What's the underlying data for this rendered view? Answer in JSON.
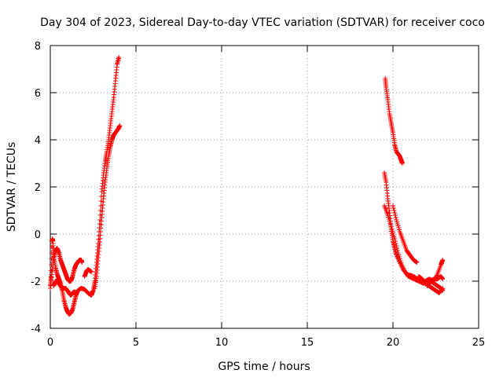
{
  "chart_data": {
    "type": "scatter",
    "title": "Day 304 of 2023, Sidereal Day-to-day VTEC variation (SDTVAR) for receiver coco",
    "xlabel": "GPS time / hours",
    "ylabel": "SDTVAR / TECUs",
    "xlim": [
      0,
      25
    ],
    "ylim": [
      -4,
      8
    ],
    "xticks": [
      0,
      5,
      10,
      15,
      20,
      25
    ],
    "yticks": [
      -4,
      -2,
      0,
      2,
      4,
      6,
      8
    ],
    "xtick_labels": [
      "0",
      "5",
      "10",
      "15",
      "20",
      "25"
    ],
    "ytick_labels": [
      "-4",
      "-2",
      "0",
      "2",
      "4",
      "6",
      "8"
    ],
    "grid": true,
    "marker": "+",
    "series": [
      {
        "name": "SDTVAR",
        "color": "#ff0000",
        "segments": [
          [
            [
              0.0,
              -2.2
            ],
            [
              0.05,
              -1.8
            ],
            [
              0.1,
              -0.3
            ],
            [
              0.12,
              -0.2
            ],
            [
              0.15,
              -0.3
            ],
            [
              0.2,
              -0.9
            ],
            [
              0.3,
              -1.4
            ],
            [
              0.4,
              -1.7
            ],
            [
              0.5,
              -1.9
            ],
            [
              0.6,
              -2.1
            ],
            [
              0.7,
              -2.4
            ],
            [
              0.8,
              -2.8
            ],
            [
              0.9,
              -3.1
            ],
            [
              1.0,
              -3.3
            ],
            [
              1.1,
              -3.4
            ],
            [
              1.2,
              -3.35
            ],
            [
              1.3,
              -3.2
            ],
            [
              1.4,
              -2.9
            ],
            [
              1.5,
              -2.6
            ],
            [
              1.6,
              -2.4
            ],
            [
              1.8,
              -2.3
            ],
            [
              2.0,
              -2.35
            ],
            [
              2.2,
              -2.5
            ],
            [
              2.4,
              -2.6
            ],
            [
              2.5,
              -2.4
            ],
            [
              2.6,
              -2.0
            ],
            [
              2.7,
              -1.2
            ],
            [
              2.8,
              -0.4
            ],
            [
              2.9,
              0.6
            ],
            [
              3.0,
              1.8
            ],
            [
              3.1,
              2.5
            ],
            [
              3.2,
              3.1
            ],
            [
              3.3,
              3.5
            ],
            [
              3.4,
              4.0
            ],
            [
              3.5,
              4.6
            ],
            [
              3.6,
              5.2
            ],
            [
              3.7,
              5.8
            ],
            [
              3.8,
              6.5
            ],
            [
              3.9,
              7.2
            ],
            [
              4.0,
              7.5
            ]
          ],
          [
            [
              0.0,
              -2.3
            ],
            [
              0.1,
              -1.6
            ],
            [
              0.2,
              -1.0
            ],
            [
              0.3,
              -0.7
            ],
            [
              0.4,
              -0.6
            ],
            [
              0.5,
              -0.8
            ],
            [
              0.6,
              -1.1
            ],
            [
              0.7,
              -1.3
            ],
            [
              0.8,
              -1.5
            ],
            [
              0.9,
              -1.7
            ],
            [
              1.0,
              -1.9
            ],
            [
              1.1,
              -2.0
            ],
            [
              1.2,
              -2.0
            ],
            [
              1.3,
              -1.8
            ],
            [
              1.4,
              -1.5
            ],
            [
              1.5,
              -1.3
            ],
            [
              1.6,
              -1.2
            ],
            [
              1.7,
              -1.1
            ],
            [
              1.8,
              -1.1
            ],
            [
              1.85,
              -1.2
            ]
          ],
          [
            [
              0.2,
              -2.2
            ],
            [
              0.3,
              -2.0
            ],
            [
              0.4,
              -2.0
            ],
            [
              0.5,
              -2.1
            ],
            [
              0.6,
              -2.2
            ],
            [
              0.7,
              -2.3
            ],
            [
              0.8,
              -2.3
            ],
            [
              0.9,
              -2.3
            ],
            [
              1.0,
              -2.4
            ],
            [
              1.1,
              -2.5
            ],
            [
              1.2,
              -2.6
            ],
            [
              1.3,
              -2.5
            ],
            [
              1.4,
              -2.45
            ],
            [
              1.5,
              -2.5
            ]
          ],
          [
            [
              2.6,
              -2.3
            ],
            [
              2.7,
              -1.8
            ],
            [
              2.8,
              -1.0
            ],
            [
              2.9,
              -0.2
            ],
            [
              3.0,
              0.7
            ],
            [
              3.1,
              1.5
            ],
            [
              3.2,
              2.2
            ],
            [
              3.3,
              2.8
            ],
            [
              3.4,
              3.3
            ],
            [
              3.5,
              3.7
            ],
            [
              3.6,
              4.0
            ],
            [
              3.7,
              4.2
            ],
            [
              3.8,
              4.3
            ],
            [
              3.9,
              4.4
            ],
            [
              4.0,
              4.5
            ],
            [
              4.05,
              4.6
            ]
          ],
          [
            [
              2.0,
              -1.8
            ],
            [
              2.1,
              -1.6
            ],
            [
              2.2,
              -1.5
            ],
            [
              2.3,
              -1.55
            ],
            [
              2.4,
              -1.6
            ]
          ],
          [
            [
              19.55,
              6.6
            ],
            [
              19.6,
              6.2
            ],
            [
              19.7,
              5.7
            ],
            [
              19.8,
              5.1
            ],
            [
              19.9,
              4.7
            ],
            [
              20.0,
              4.3
            ],
            [
              20.1,
              3.8
            ],
            [
              20.2,
              3.5
            ],
            [
              20.3,
              3.4
            ],
            [
              20.4,
              3.3
            ],
            [
              20.5,
              3.1
            ],
            [
              20.55,
              3.0
            ]
          ],
          [
            [
              19.5,
              2.6
            ],
            [
              19.6,
              2.2
            ],
            [
              19.7,
              1.5
            ],
            [
              19.8,
              0.9
            ],
            [
              19.9,
              0.2
            ],
            [
              20.0,
              -0.3
            ],
            [
              20.1,
              -0.6
            ],
            [
              20.2,
              -0.9
            ],
            [
              20.4,
              -1.2
            ],
            [
              20.6,
              -1.5
            ],
            [
              20.8,
              -1.7
            ],
            [
              21.0,
              -1.75
            ],
            [
              21.2,
              -1.8
            ],
            [
              21.4,
              -1.9
            ],
            [
              21.6,
              -2.0
            ],
            [
              21.8,
              -2.05
            ],
            [
              22.0,
              -1.95
            ],
            [
              22.2,
              -2.0
            ],
            [
              22.4,
              -2.1
            ],
            [
              22.6,
              -2.2
            ],
            [
              22.8,
              -2.3
            ],
            [
              22.9,
              -2.4
            ]
          ],
          [
            [
              19.5,
              1.2
            ],
            [
              19.7,
              0.8
            ],
            [
              19.9,
              0.3
            ],
            [
              20.1,
              -0.2
            ],
            [
              20.3,
              -0.8
            ],
            [
              20.5,
              -1.3
            ],
            [
              20.7,
              -1.6
            ],
            [
              20.9,
              -1.8
            ],
            [
              21.2,
              -1.9
            ],
            [
              21.5,
              -2.0
            ],
            [
              21.8,
              -2.1
            ],
            [
              22.1,
              -1.9
            ],
            [
              22.4,
              -2.0
            ],
            [
              22.6,
              -1.7
            ],
            [
              22.8,
              -1.3
            ],
            [
              22.9,
              -1.1
            ]
          ],
          [
            [
              20.0,
              1.2
            ],
            [
              20.2,
              0.6
            ],
            [
              20.4,
              0.1
            ],
            [
              20.6,
              -0.3
            ],
            [
              20.8,
              -0.7
            ],
            [
              21.0,
              -0.9
            ],
            [
              21.2,
              -1.1
            ],
            [
              21.4,
              -1.2
            ]
          ],
          [
            [
              21.5,
              -1.8
            ],
            [
              21.7,
              -1.9
            ],
            [
              21.9,
              -2.1
            ],
            [
              22.1,
              -2.2
            ],
            [
              22.3,
              -2.3
            ],
            [
              22.5,
              -2.4
            ],
            [
              22.7,
              -2.5
            ],
            [
              22.9,
              -2.3
            ]
          ],
          [
            [
              22.0,
              -2.2
            ],
            [
              22.2,
              -2.0
            ],
            [
              22.4,
              -1.9
            ],
            [
              22.6,
              -1.9
            ],
            [
              22.8,
              -1.8
            ],
            [
              22.9,
              -1.9
            ]
          ]
        ]
      }
    ]
  }
}
